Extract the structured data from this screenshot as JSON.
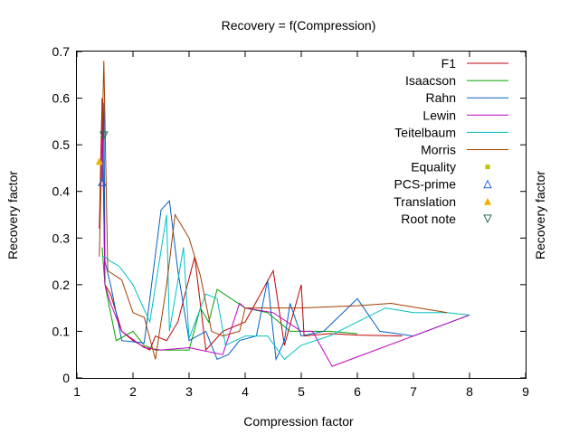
{
  "chart_data": {
    "type": "line",
    "title": "Recovery = f(Compression)",
    "xlabel": "Compression factor",
    "ylabel": "Recovery factor",
    "y2label": "Recovery factor",
    "xlim": [
      1,
      9
    ],
    "ylim": [
      0,
      0.7
    ],
    "xticks": [
      "1",
      "2",
      "3",
      "4",
      "5",
      "6",
      "7",
      "8",
      "9"
    ],
    "yticks": [
      "0",
      "0.1",
      "0.2",
      "0.3",
      "0.4",
      "0.5",
      "0.6",
      "0.7"
    ],
    "legend_position": "top-right",
    "grid": false,
    "series": [
      {
        "name": "F1",
        "kind": "line",
        "color": "#c00000",
        "points": [
          [
            1.4,
            0.32
          ],
          [
            1.45,
            0.6
          ],
          [
            1.5,
            0.2
          ],
          [
            1.6,
            0.18
          ],
          [
            1.8,
            0.1
          ],
          [
            2.0,
            0.08
          ],
          [
            2.3,
            0.06
          ],
          [
            2.4,
            0.09
          ],
          [
            2.6,
            0.08
          ],
          [
            2.8,
            0.12
          ],
          [
            3.1,
            0.26
          ],
          [
            3.3,
            0.06
          ],
          [
            3.6,
            0.1
          ],
          [
            4.0,
            0.12
          ],
          [
            4.5,
            0.23
          ],
          [
            4.7,
            0.07
          ],
          [
            5.0,
            0.2
          ],
          [
            5.05,
            0.09
          ],
          [
            5.5,
            0.095
          ],
          [
            6.0,
            0.092
          ],
          [
            6.8,
            0.09
          ]
        ]
      },
      {
        "name": "Isaacson",
        "kind": "line",
        "color": "#00a000",
        "points": [
          [
            1.45,
            0.28
          ],
          [
            1.5,
            0.2
          ],
          [
            1.7,
            0.08
          ],
          [
            2.0,
            0.1
          ],
          [
            2.2,
            0.07
          ],
          [
            2.4,
            0.06
          ],
          [
            2.7,
            0.06
          ],
          [
            3.0,
            0.06
          ],
          [
            3.2,
            0.15
          ],
          [
            3.35,
            0.12
          ],
          [
            3.5,
            0.19
          ],
          [
            4.0,
            0.15
          ],
          [
            4.4,
            0.14
          ],
          [
            4.6,
            0.12
          ],
          [
            4.8,
            0.1
          ],
          [
            5.0,
            0.1
          ],
          [
            5.5,
            0.1
          ],
          [
            6.0,
            0.095
          ]
        ]
      },
      {
        "name": "Rahn",
        "kind": "line",
        "color": "#0060c0",
        "points": [
          [
            1.45,
            0.42
          ],
          [
            1.48,
            0.59
          ],
          [
            1.5,
            0.25
          ],
          [
            1.6,
            0.2
          ],
          [
            1.8,
            0.08
          ],
          [
            2.2,
            0.075
          ],
          [
            2.5,
            0.36
          ],
          [
            2.65,
            0.38
          ],
          [
            2.8,
            0.23
          ],
          [
            3.0,
            0.08
          ],
          [
            3.3,
            0.1
          ],
          [
            3.5,
            0.04
          ],
          [
            3.7,
            0.05
          ],
          [
            3.9,
            0.08
          ],
          [
            4.2,
            0.09
          ],
          [
            4.4,
            0.21
          ],
          [
            4.55,
            0.04
          ],
          [
            4.7,
            0.08
          ],
          [
            4.8,
            0.16
          ],
          [
            5.0,
            0.09
          ],
          [
            5.4,
            0.1
          ],
          [
            6.0,
            0.17
          ],
          [
            6.4,
            0.1
          ],
          [
            7.0,
            0.09
          ],
          [
            8.0,
            0.135
          ]
        ]
      },
      {
        "name": "Lewin",
        "kind": "line",
        "color": "#c000c0",
        "points": [
          [
            1.45,
            0.59
          ],
          [
            1.5,
            0.2
          ],
          [
            1.6,
            0.16
          ],
          [
            1.8,
            0.1
          ],
          [
            2.2,
            0.065
          ],
          [
            2.5,
            0.06
          ],
          [
            3.0,
            0.065
          ],
          [
            3.2,
            0.06
          ],
          [
            3.6,
            0.05
          ],
          [
            3.9,
            0.16
          ],
          [
            4.0,
            0.15
          ],
          [
            4.5,
            0.14
          ],
          [
            5.0,
            0.1
          ],
          [
            5.2,
            0.1
          ],
          [
            5.55,
            0.025
          ],
          [
            8.0,
            0.135
          ]
        ]
      },
      {
        "name": "Teitelbaum",
        "kind": "line",
        "color": "#00c0c0",
        "points": [
          [
            1.45,
            0.26
          ],
          [
            1.5,
            0.26
          ],
          [
            1.6,
            0.25
          ],
          [
            1.75,
            0.24
          ],
          [
            2.0,
            0.2
          ],
          [
            2.3,
            0.12
          ],
          [
            2.6,
            0.35
          ],
          [
            2.65,
            0.1
          ],
          [
            2.9,
            0.28
          ],
          [
            3.0,
            0.085
          ],
          [
            3.3,
            0.18
          ],
          [
            3.5,
            0.17
          ],
          [
            3.65,
            0.07
          ],
          [
            4.0,
            0.09
          ],
          [
            4.4,
            0.09
          ],
          [
            4.7,
            0.04
          ],
          [
            5.0,
            0.07
          ],
          [
            5.5,
            0.09
          ],
          [
            6.5,
            0.15
          ],
          [
            7.0,
            0.14
          ],
          [
            7.6,
            0.14
          ],
          [
            8.0,
            0.135
          ]
        ]
      },
      {
        "name": "Morris",
        "kind": "line",
        "color": "#a04000",
        "points": [
          [
            1.4,
            0.26
          ],
          [
            1.48,
            0.68
          ],
          [
            1.55,
            0.23
          ],
          [
            1.8,
            0.21
          ],
          [
            2.0,
            0.14
          ],
          [
            2.2,
            0.13
          ],
          [
            2.4,
            0.04
          ],
          [
            2.6,
            0.2
          ],
          [
            2.75,
            0.35
          ],
          [
            3.0,
            0.3
          ],
          [
            3.2,
            0.22
          ],
          [
            3.4,
            0.1
          ],
          [
            3.6,
            0.09
          ],
          [
            3.9,
            0.1
          ],
          [
            4.0,
            0.15
          ],
          [
            4.5,
            0.15
          ],
          [
            5.0,
            0.15
          ],
          [
            6.0,
            0.155
          ],
          [
            6.6,
            0.16
          ],
          [
            7.6,
            0.14
          ]
        ]
      },
      {
        "name": "Equality",
        "kind": "marker",
        "marker": "square",
        "color": "#c0c000",
        "points": []
      },
      {
        "name": "PCS-prime",
        "kind": "marker",
        "marker": "triangle-open",
        "color": "#2060e0",
        "points": [
          [
            1.45,
            0.42
          ]
        ]
      },
      {
        "name": "Translation",
        "kind": "marker",
        "marker": "triangle-filled",
        "color": "#f0b000",
        "points": [
          [
            1.4,
            0.465
          ]
        ]
      },
      {
        "name": "Root note",
        "kind": "marker",
        "marker": "triangle-down-open",
        "color": "#207050",
        "points": [
          [
            1.48,
            0.52
          ]
        ]
      }
    ]
  }
}
